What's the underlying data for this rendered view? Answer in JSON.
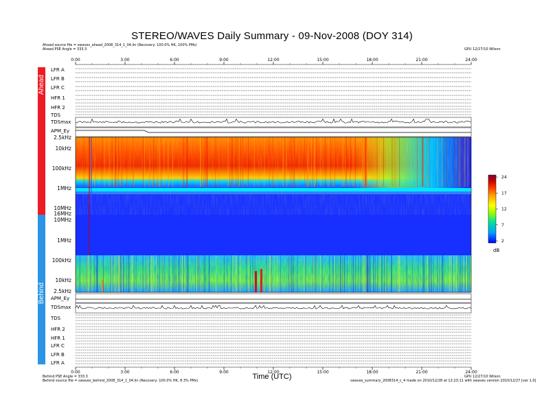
{
  "header": {
    "title": "STEREO/WAVES Daily Summary - 09-Nov-2008 (DOY 314)",
    "ahead_source": "Ahead source file = swaves_ahead_2008_314_1_04.lin (Recovery: 100.0% HK, 100% PMs)",
    "ahead_angle": "Ahead PSE Angle = 333.3",
    "ahead_credit": "GPU 12/27/10 Wilson"
  },
  "footer": {
    "behind_angle": "Behind PSE Angle = 333.3",
    "behind_source": "Behind source file = swaves_behind_2008_314_1_04.lin (Recovery: 100.0% HK, 8.3% PMs)",
    "behind_credit": "GPU 12/27/10 Wilson",
    "plot_file": "swaves_summary_2008314_c_4 made on 2010/12/28 at 12:23:11 with swaves version 2010/12/27 [ver 1.0]"
  },
  "sidebar": {
    "ahead_label": "Ahead",
    "behind_label": "Behind"
  },
  "ahead_panels": [
    "LFR A",
    "LFR B",
    "LFR C",
    "HFR 1",
    "HFR 2",
    "TDS",
    "TDSmax",
    "APM_Ey"
  ],
  "behind_panels": [
    "APM_Ey",
    "TDSmax",
    "TDS",
    "HFR 2",
    "HFR 1",
    "LFR C",
    "LFR B",
    "LFR A"
  ],
  "axes": {
    "xlabel": "Time (UTC)",
    "time_ticks": [
      "0:00",
      "3:00",
      "6:00",
      "9:00",
      "12:00",
      "15:00",
      "18:00",
      "21:00",
      "24:00"
    ],
    "ahead_freq_ticks": [
      "2.5kHz",
      "10kHz",
      "100kHz",
      "1MHz",
      "16MHz"
    ],
    "behind_freq_ticks": [
      "10MHz",
      "1MHz",
      "100kHz",
      "10kHz",
      "2.5kHz"
    ],
    "extra_freq_tick": "10MHz"
  },
  "colorbar": {
    "ticks": [
      "24",
      "17",
      "12",
      "7",
      "2"
    ],
    "unit": "dB",
    "colors": [
      "#0000ff",
      "#00a0ff",
      "#00e0a0",
      "#a0ff00",
      "#ffff00",
      "#ffa000",
      "#ff3000",
      "#c00000",
      "#800040"
    ]
  },
  "chart_data": {
    "type": "heatmap",
    "title": "STEREO/WAVES Daily Summary - 09-Nov-2008 (DOY 314)",
    "xlabel": "Time (UTC)",
    "x_range_hours": [
      0,
      24
    ],
    "z_unit": "dB",
    "z_range": [
      2,
      24
    ],
    "panels": [
      {
        "name": "Ahead",
        "y_range": [
          "2.5kHz",
          "16MHz"
        ],
        "note": "intense emission 10kHz-1MHz from 0:00 to ~21:00"
      },
      {
        "name": "Behind",
        "y_range": [
          "10MHz",
          "2.5kHz"
        ],
        "note": "background noise below 100kHz"
      }
    ]
  }
}
